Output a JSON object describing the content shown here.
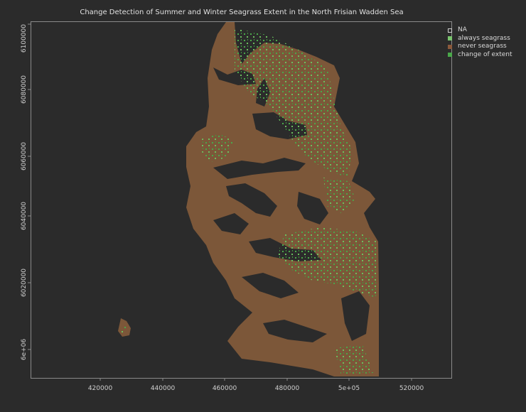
{
  "map": {
    "title": "Change Detection of Summer and Winter Seagrass Extent in the North Frisian Wadden Sea",
    "x_ticks": [
      "420000",
      "440000",
      "460000",
      "480000",
      "5e+05",
      "520000"
    ],
    "y_ticks": [
      "6e+06",
      "6020000",
      "6040000",
      "6060000",
      "6080000",
      "6100000"
    ],
    "legend": [
      {
        "label": "NA",
        "color": "#2b2b2b",
        "icon": "na-swatch"
      },
      {
        "label": "always seagrass",
        "color": "#7ac46e",
        "icon": "always-seagrass-swatch"
      },
      {
        "label": "never seagrass",
        "color": "#8b5a3c",
        "icon": "never-seagrass-swatch"
      },
      {
        "label": "change of extent",
        "color": "#4aa84a",
        "icon": "change-of-extent-swatch"
      }
    ],
    "colors": {
      "background": "#2b2b2b",
      "mudflat": "#7c5739",
      "always": "#7ac46e",
      "change": "#3f9a3f",
      "axis": "#8a8a8a"
    }
  }
}
